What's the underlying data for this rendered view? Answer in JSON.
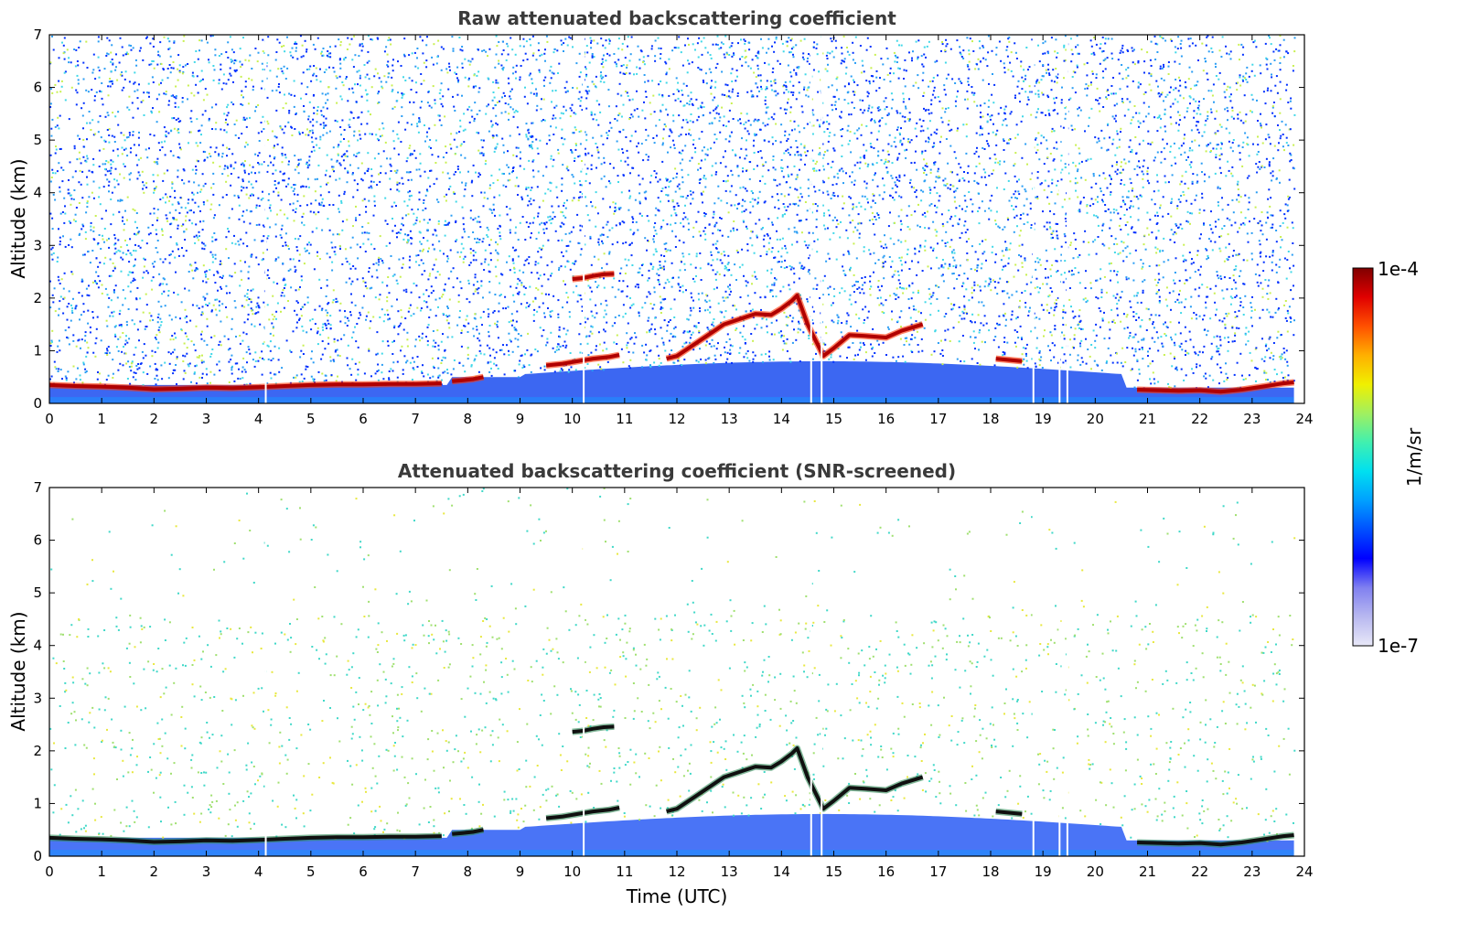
{
  "chart_data": [
    {
      "type": "heatmap",
      "title": "Raw attenuated backscattering coefficient",
      "xlabel": "",
      "ylabel": "Altitude (km)",
      "xlim": [
        0,
        24
      ],
      "ylim": [
        0,
        7
      ],
      "xticks": [
        "0",
        "1",
        "2",
        "3",
        "4",
        "5",
        "6",
        "7",
        "8",
        "9",
        "10",
        "11",
        "12",
        "13",
        "14",
        "15",
        "16",
        "17",
        "18",
        "19",
        "20",
        "21",
        "22",
        "23",
        "24"
      ],
      "yticks": [
        "0",
        "1",
        "2",
        "3",
        "4",
        "5",
        "6",
        "7"
      ],
      "data_end_hour": 23.8,
      "boundary_layer_top_km": [
        [
          0,
          0.35
        ],
        [
          0.5,
          0.33
        ],
        [
          1,
          0.32
        ],
        [
          1.5,
          0.3
        ],
        [
          2,
          0.27
        ],
        [
          2.5,
          0.28
        ],
        [
          3,
          0.3
        ],
        [
          3.5,
          0.29
        ],
        [
          4,
          0.31
        ],
        [
          4.5,
          0.33
        ],
        [
          5,
          0.35
        ],
        [
          5.5,
          0.36
        ],
        [
          6,
          0.36
        ],
        [
          6.5,
          0.37
        ],
        [
          7,
          0.37
        ],
        [
          7.5,
          0.38
        ]
      ],
      "cloud_layers_km": [
        {
          "x": [
            7.7,
            7.9,
            8.1,
            8.3
          ],
          "y": [
            0.42,
            0.44,
            0.46,
            0.5
          ]
        },
        {
          "x": [
            9.5,
            9.8,
            10.1,
            10.4,
            10.7,
            10.9
          ],
          "y": [
            0.72,
            0.75,
            0.8,
            0.85,
            0.88,
            0.92
          ]
        },
        {
          "x": [
            10.0,
            10.2,
            10.4,
            10.6,
            10.8
          ],
          "y": [
            2.36,
            2.38,
            2.42,
            2.45,
            2.46
          ]
        },
        {
          "x": [
            11.8,
            12.0,
            12.3,
            12.6,
            12.9,
            13.2,
            13.5,
            13.8,
            14.0,
            14.2,
            14.3,
            14.5,
            14.8,
            15.0,
            15.3,
            15.6,
            16.0,
            16.3,
            16.7
          ],
          "y": [
            0.85,
            0.9,
            1.1,
            1.3,
            1.5,
            1.6,
            1.7,
            1.68,
            1.8,
            1.95,
            2.05,
            1.5,
            0.9,
            1.05,
            1.3,
            1.28,
            1.25,
            1.38,
            1.5
          ]
        },
        {
          "x": [
            18.1,
            18.6
          ],
          "y": [
            0.85,
            0.8
          ]
        },
        {
          "x": [
            20.8,
            21.2,
            21.6,
            22.0,
            22.4,
            22.8,
            23.2,
            23.6,
            23.8
          ],
          "y": [
            0.26,
            0.25,
            0.24,
            0.25,
            0.22,
            0.26,
            0.32,
            0.38,
            0.4
          ]
        }
      ],
      "gaps_hour": [
        4.12,
        10.2,
        14.55,
        14.75,
        18.8,
        19.3,
        19.45
      ]
    },
    {
      "type": "heatmap",
      "title": "Attenuated backscattering coefficient (SNR-screened)",
      "xlabel": "Time (UTC)",
      "ylabel": "Altitude (km)",
      "xlim": [
        0,
        24
      ],
      "ylim": [
        0,
        7
      ],
      "xticks": [
        "0",
        "1",
        "2",
        "3",
        "4",
        "5",
        "6",
        "7",
        "8",
        "9",
        "10",
        "11",
        "12",
        "13",
        "14",
        "15",
        "16",
        "17",
        "18",
        "19",
        "20",
        "21",
        "22",
        "23",
        "24"
      ],
      "yticks": [
        "0",
        "1",
        "2",
        "3",
        "4",
        "5",
        "6",
        "7"
      ],
      "data_end_hour": 23.8
    }
  ],
  "colorbar": {
    "max_label": "1e-4",
    "min_label": "1e-7",
    "label": "1/m/sr",
    "colors": [
      "#e8e8f8",
      "#b8b8f0",
      "#8080f0",
      "#0000ff",
      "#0050ff",
      "#00a0ff",
      "#00e0f0",
      "#40f0b0",
      "#a0f060",
      "#f0f000",
      "#ffb000",
      "#ff5000",
      "#e00000",
      "#800000"
    ]
  }
}
